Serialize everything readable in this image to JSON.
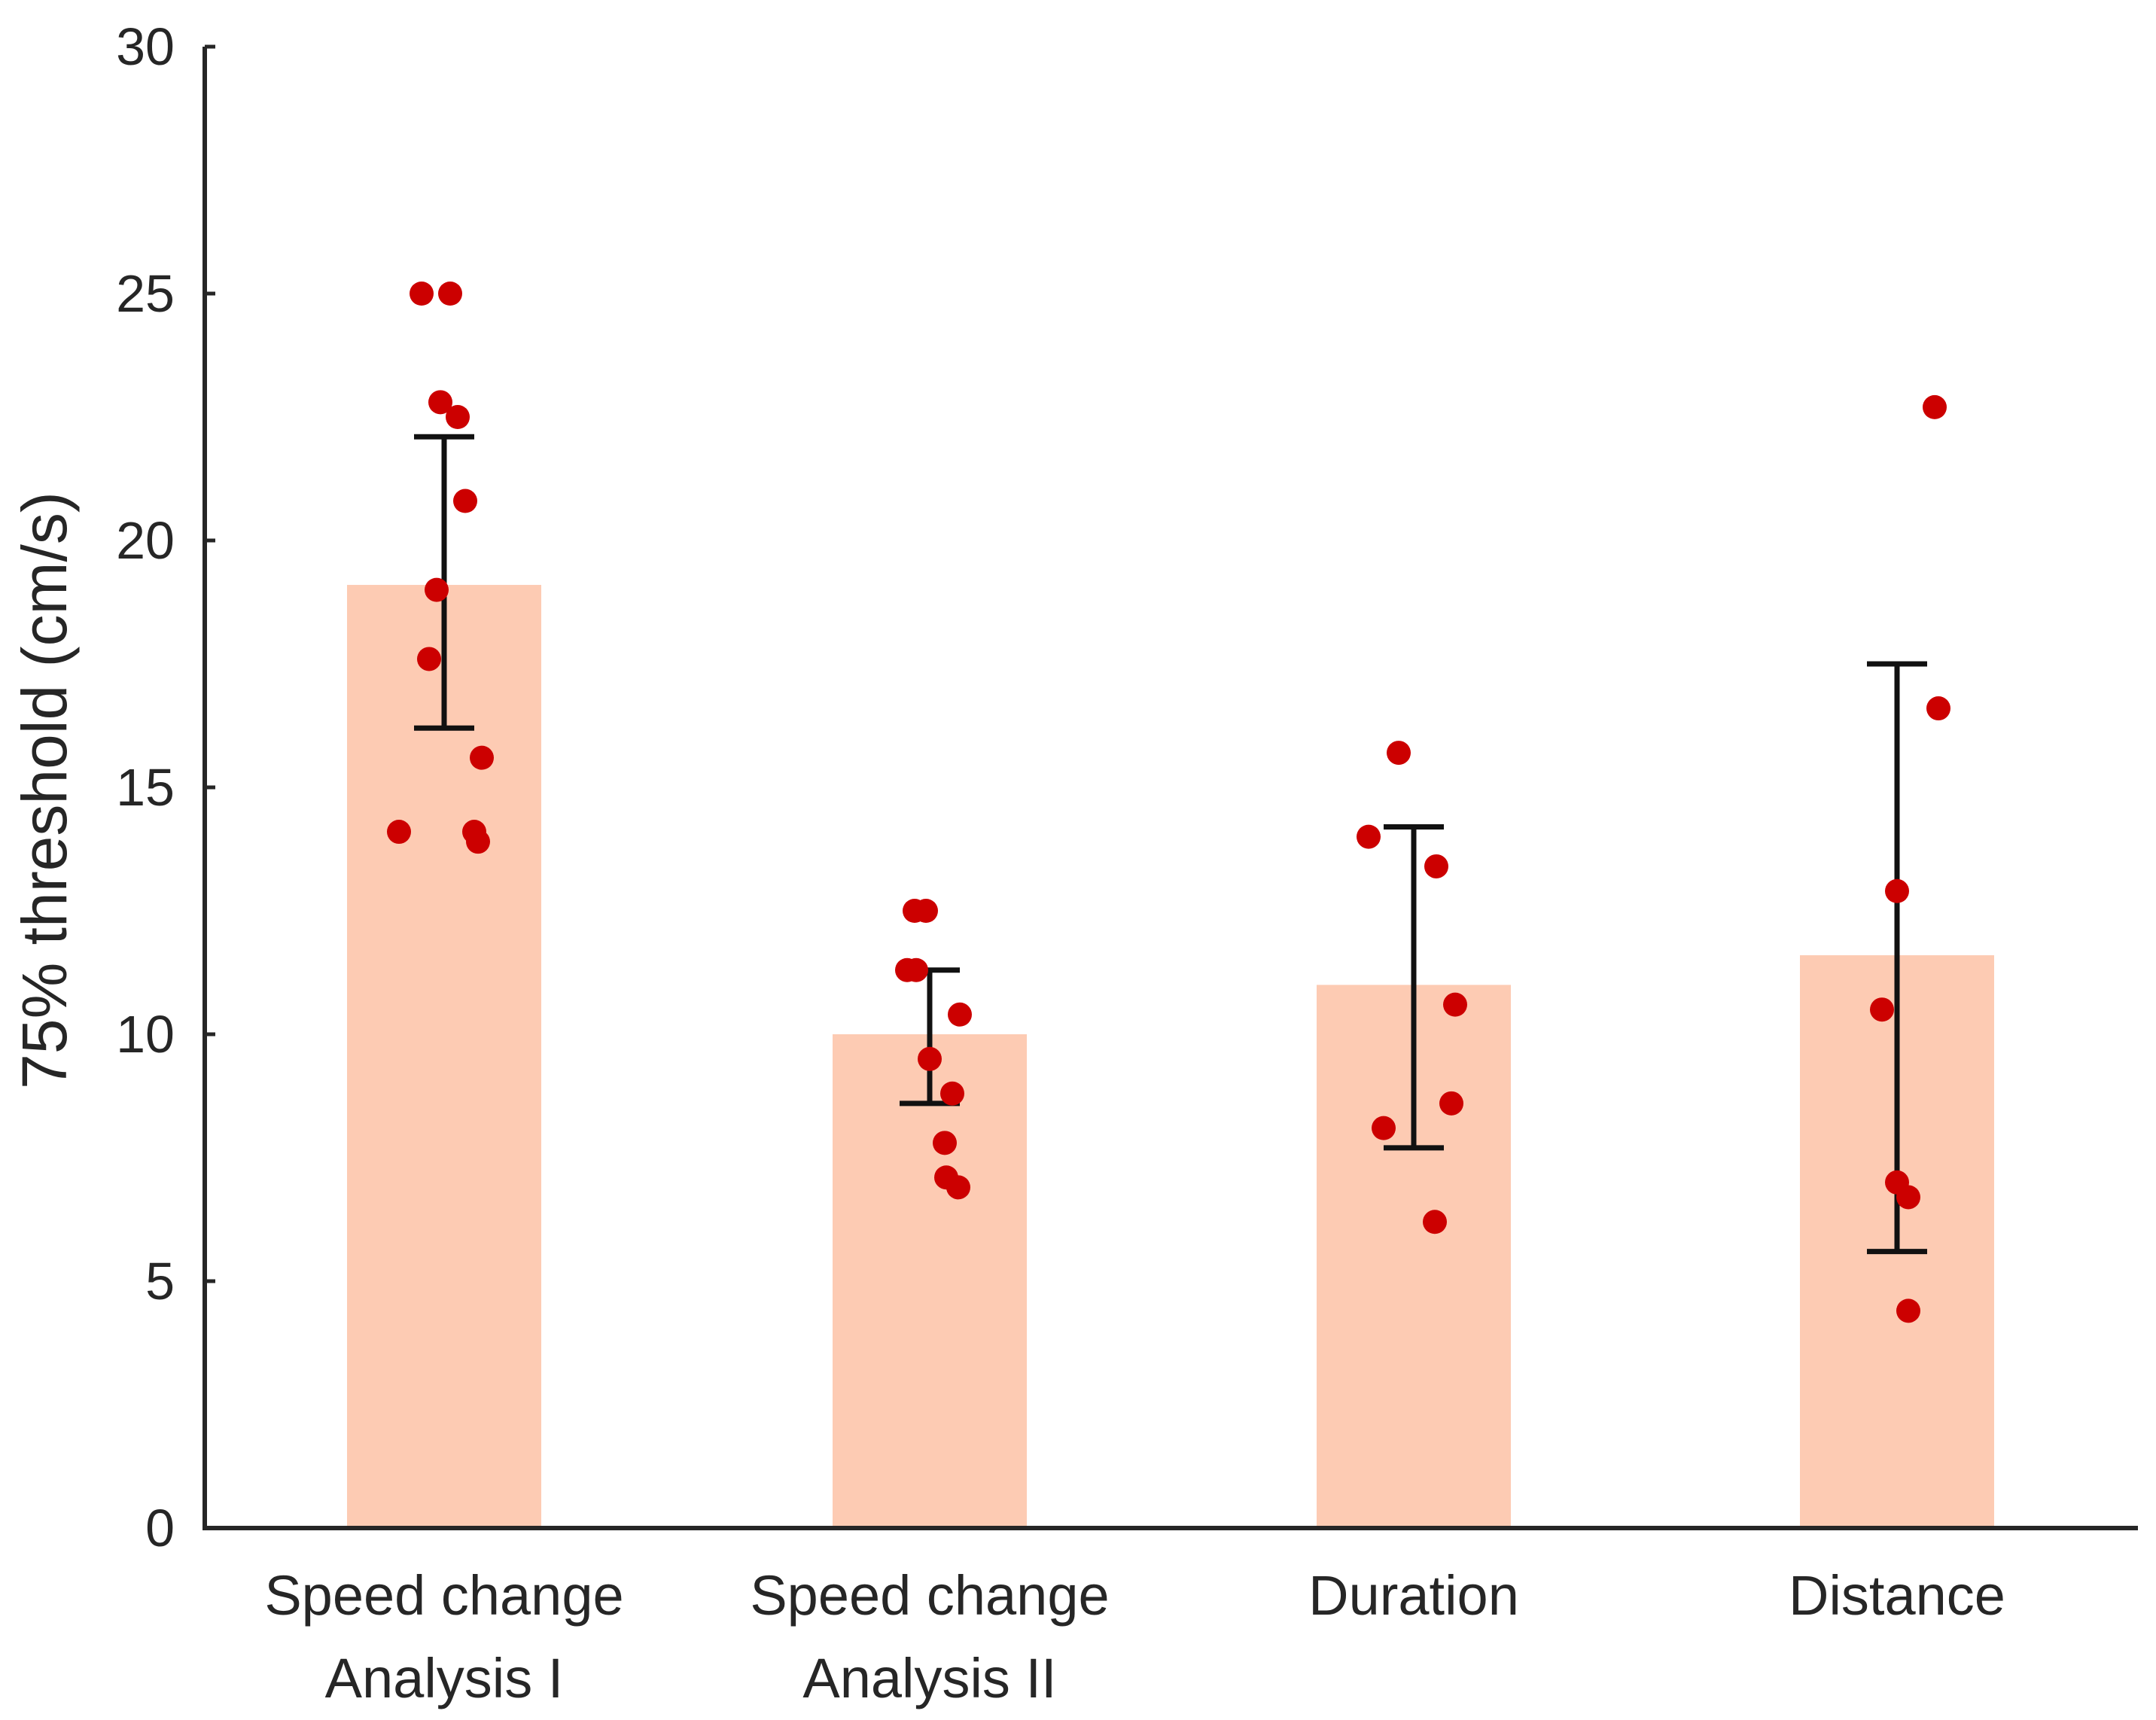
{
  "chart_data": {
    "type": "bar",
    "title": "",
    "xlabel": "",
    "ylabel": "75% threshold (cm/s)",
    "ylim": [
      0,
      30
    ],
    "yticks": [
      0,
      5,
      10,
      15,
      20,
      25,
      30
    ],
    "grid": false,
    "categories": [
      [
        "Speed change",
        "Analysis I"
      ],
      [
        "Speed change",
        "Analysis II"
      ],
      [
        "Duration"
      ],
      [
        "Distance"
      ]
    ],
    "values": [
      19.1,
      10.0,
      11.0,
      11.6
    ],
    "error_low": [
      16.2,
      8.6,
      7.7,
      5.6
    ],
    "error_high": [
      22.1,
      11.3,
      14.2,
      17.5
    ],
    "points": [
      [
        25.0,
        25.0,
        22.8,
        22.5,
        20.8,
        19.0,
        17.6,
        15.6,
        14.1,
        14.1,
        13.9
      ],
      [
        12.5,
        12.5,
        11.3,
        11.3,
        10.4,
        9.5,
        8.8,
        7.8,
        7.1,
        6.9
      ],
      [
        15.7,
        14.0,
        13.4,
        10.6,
        8.6,
        8.1,
        6.2
      ],
      [
        22.7,
        16.6,
        12.9,
        10.5,
        7.0,
        6.7,
        4.4
      ]
    ],
    "colors": {
      "bar": "#fdcbb3",
      "point": "#cc0000",
      "error": "#111111",
      "axis": "#262626"
    }
  }
}
